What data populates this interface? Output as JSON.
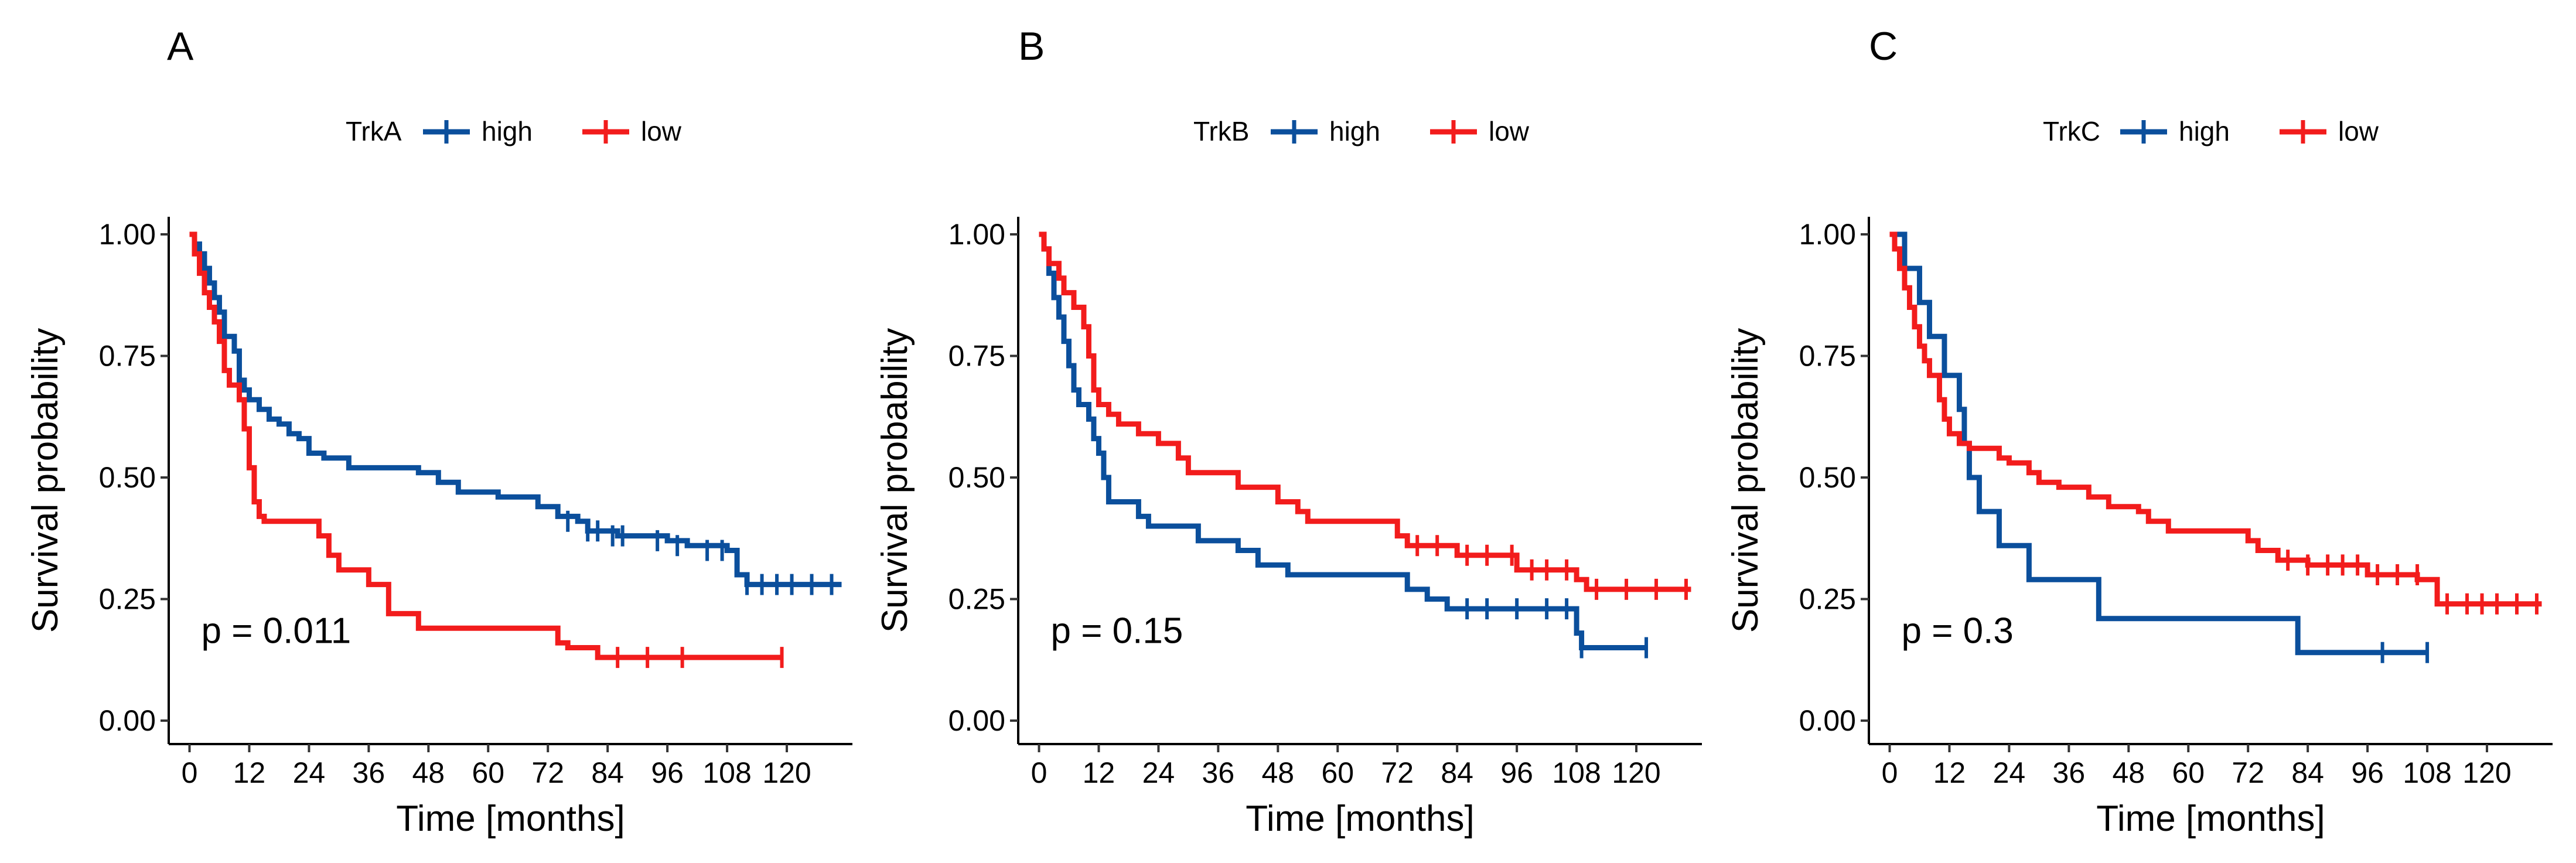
{
  "chart_data": [
    {
      "type": "line",
      "panel_label": "A",
      "legend_title": "TrkA",
      "xlabel": "Time [months]",
      "ylabel": "Survival probability",
      "xlim": [
        -3,
        132
      ],
      "ylim": [
        0,
        1.0
      ],
      "xticks": [
        0,
        12,
        24,
        36,
        48,
        60,
        72,
        84,
        96,
        108,
        120
      ],
      "xtick_labels": [
        "0",
        "12",
        "24",
        "36",
        "48",
        "60",
        "72",
        "84",
        "96",
        "108",
        "120"
      ],
      "yticks": [
        0,
        0.25,
        0.5,
        0.75,
        1.0
      ],
      "ytick_labels": [
        "0.00",
        "0.25",
        "0.50",
        "0.75",
        "1.00"
      ],
      "annotation": "p = 0.011",
      "series": [
        {
          "name": "high",
          "color": "#0b4f9c",
          "steps": [
            [
              0,
              1.0
            ],
            [
              1,
              0.98
            ],
            [
              2,
              0.96
            ],
            [
              3,
              0.93
            ],
            [
              4,
              0.9
            ],
            [
              5,
              0.87
            ],
            [
              6,
              0.84
            ],
            [
              7,
              0.79
            ],
            [
              9,
              0.76
            ],
            [
              10,
              0.7
            ],
            [
              11,
              0.68
            ],
            [
              12,
              0.66
            ],
            [
              14,
              0.64
            ],
            [
              16,
              0.62
            ],
            [
              18,
              0.61
            ],
            [
              20,
              0.59
            ],
            [
              22,
              0.58
            ],
            [
              24,
              0.55
            ],
            [
              27,
              0.54
            ],
            [
              32,
              0.52
            ],
            [
              40,
              0.52
            ],
            [
              46,
              0.51
            ],
            [
              50,
              0.49
            ],
            [
              54,
              0.47
            ],
            [
              62,
              0.46
            ],
            [
              70,
              0.44
            ],
            [
              74,
              0.42
            ],
            [
              78,
              0.41
            ],
            [
              80,
              0.39
            ],
            [
              86,
              0.38
            ],
            [
              96,
              0.37
            ],
            [
              100,
              0.36
            ],
            [
              108,
              0.35
            ],
            [
              110,
              0.3
            ],
            [
              112,
              0.28
            ],
            [
              131,
              0.28
            ]
          ],
          "censored": [
            [
              76,
              0.41
            ],
            [
              80,
              0.39
            ],
            [
              82,
              0.39
            ],
            [
              85,
              0.38
            ],
            [
              87,
              0.38
            ],
            [
              94,
              0.37
            ],
            [
              98,
              0.36
            ],
            [
              104,
              0.35
            ],
            [
              107,
              0.35
            ],
            [
              112,
              0.28
            ],
            [
              115,
              0.28
            ],
            [
              118,
              0.28
            ],
            [
              121,
              0.28
            ],
            [
              125,
              0.28
            ],
            [
              129,
              0.28
            ]
          ]
        },
        {
          "name": "low",
          "color": "#f21c1c",
          "steps": [
            [
              0,
              1.0
            ],
            [
              1,
              0.96
            ],
            [
              2,
              0.92
            ],
            [
              3,
              0.88
            ],
            [
              4,
              0.85
            ],
            [
              5,
              0.82
            ],
            [
              6,
              0.78
            ],
            [
              7,
              0.72
            ],
            [
              8,
              0.69
            ],
            [
              10,
              0.66
            ],
            [
              11,
              0.6
            ],
            [
              12,
              0.52
            ],
            [
              13,
              0.45
            ],
            [
              14,
              0.42
            ],
            [
              15,
              0.41
            ],
            [
              26,
              0.38
            ],
            [
              28,
              0.34
            ],
            [
              30,
              0.31
            ],
            [
              36,
              0.28
            ],
            [
              40,
              0.22
            ],
            [
              46,
              0.19
            ],
            [
              74,
              0.16
            ],
            [
              76,
              0.15
            ],
            [
              82,
              0.13
            ],
            [
              119,
              0.13
            ]
          ],
          "censored": [
            [
              86,
              0.13
            ],
            [
              92,
              0.13
            ],
            [
              99,
              0.13
            ],
            [
              119,
              0.13
            ]
          ]
        }
      ]
    },
    {
      "type": "line",
      "panel_label": "B",
      "legend_title": "TrkB",
      "xlabel": "Time [months]",
      "ylabel": "Survival probability",
      "xlim": [
        -3,
        132
      ],
      "ylim": [
        0,
        1.0
      ],
      "xticks": [
        0,
        12,
        24,
        36,
        48,
        60,
        72,
        84,
        96,
        108,
        120
      ],
      "xtick_labels": [
        "0",
        "12",
        "24",
        "36",
        "48",
        "60",
        "72",
        "84",
        "96",
        "108",
        "120"
      ],
      "yticks": [
        0,
        0.25,
        0.5,
        0.75,
        1.0
      ],
      "ytick_labels": [
        "0.00",
        "0.25",
        "0.50",
        "0.75",
        "1.00"
      ],
      "annotation": "p = 0.15",
      "series": [
        {
          "name": "high",
          "color": "#0b4f9c",
          "steps": [
            [
              0,
              1.0
            ],
            [
              1,
              0.97
            ],
            [
              2,
              0.92
            ],
            [
              3,
              0.87
            ],
            [
              4,
              0.83
            ],
            [
              5,
              0.78
            ],
            [
              6,
              0.73
            ],
            [
              7,
              0.68
            ],
            [
              8,
              0.65
            ],
            [
              10,
              0.62
            ],
            [
              11,
              0.58
            ],
            [
              12,
              0.55
            ],
            [
              13,
              0.5
            ],
            [
              14,
              0.45
            ],
            [
              20,
              0.42
            ],
            [
              22,
              0.4
            ],
            [
              32,
              0.37
            ],
            [
              40,
              0.35
            ],
            [
              44,
              0.32
            ],
            [
              50,
              0.3
            ],
            [
              74,
              0.27
            ],
            [
              78,
              0.25
            ],
            [
              82,
              0.23
            ],
            [
              108,
              0.18
            ],
            [
              109,
              0.15
            ],
            [
              122,
              0.15
            ]
          ],
          "censored": [
            [
              86,
              0.23
            ],
            [
              90,
              0.23
            ],
            [
              96,
              0.23
            ],
            [
              102,
              0.23
            ],
            [
              106,
              0.23
            ],
            [
              109,
              0.15
            ],
            [
              122,
              0.15
            ]
          ]
        },
        {
          "name": "low",
          "color": "#f21c1c",
          "steps": [
            [
              0,
              1.0
            ],
            [
              1,
              0.97
            ],
            [
              2,
              0.94
            ],
            [
              4,
              0.91
            ],
            [
              5,
              0.88
            ],
            [
              7,
              0.85
            ],
            [
              9,
              0.81
            ],
            [
              10,
              0.75
            ],
            [
              11,
              0.68
            ],
            [
              12,
              0.65
            ],
            [
              14,
              0.63
            ],
            [
              16,
              0.61
            ],
            [
              20,
              0.59
            ],
            [
              24,
              0.57
            ],
            [
              28,
              0.54
            ],
            [
              30,
              0.51
            ],
            [
              40,
              0.48
            ],
            [
              48,
              0.45
            ],
            [
              52,
              0.43
            ],
            [
              54,
              0.41
            ],
            [
              72,
              0.38
            ],
            [
              74,
              0.36
            ],
            [
              84,
              0.34
            ],
            [
              96,
              0.31
            ],
            [
              108,
              0.29
            ],
            [
              110,
              0.27
            ],
            [
              131,
              0.27
            ]
          ],
          "censored": [
            [
              76,
              0.36
            ],
            [
              80,
              0.36
            ],
            [
              86,
              0.34
            ],
            [
              90,
              0.34
            ],
            [
              95,
              0.34
            ],
            [
              99,
              0.31
            ],
            [
              102,
              0.31
            ],
            [
              106,
              0.31
            ],
            [
              112,
              0.27
            ],
            [
              118,
              0.27
            ],
            [
              124,
              0.27
            ],
            [
              130,
              0.27
            ]
          ]
        }
      ]
    },
    {
      "type": "line",
      "panel_label": "C",
      "legend_title": "TrkC",
      "xlabel": "Time [months]",
      "ylabel": "Survival probability",
      "xlim": [
        -3,
        132
      ],
      "ylim": [
        0,
        1.0
      ],
      "xticks": [
        0,
        12,
        24,
        36,
        48,
        60,
        72,
        84,
        96,
        108,
        120
      ],
      "xtick_labels": [
        "0",
        "12",
        "24",
        "36",
        "48",
        "60",
        "72",
        "84",
        "96",
        "108",
        "120"
      ],
      "yticks": [
        0,
        0.25,
        0.5,
        0.75,
        1.0
      ],
      "ytick_labels": [
        "0.00",
        "0.25",
        "0.50",
        "0.75",
        "1.00"
      ],
      "annotation": "p = 0.3",
      "series": [
        {
          "name": "high",
          "color": "#0b4f9c",
          "steps": [
            [
              0,
              1.0
            ],
            [
              3,
              0.93
            ],
            [
              6,
              0.86
            ],
            [
              8,
              0.79
            ],
            [
              11,
              0.71
            ],
            [
              14,
              0.64
            ],
            [
              15,
              0.57
            ],
            [
              16,
              0.5
            ],
            [
              18,
              0.43
            ],
            [
              22,
              0.36
            ],
            [
              28,
              0.29
            ],
            [
              42,
              0.21
            ],
            [
              82,
              0.14
            ],
            [
              108,
              0.14
            ]
          ],
          "censored": [
            [
              99,
              0.14
            ],
            [
              108,
              0.14
            ]
          ]
        },
        {
          "name": "low",
          "color": "#f21c1c",
          "steps": [
            [
              0,
              1.0
            ],
            [
              1,
              0.97
            ],
            [
              2,
              0.93
            ],
            [
              3,
              0.89
            ],
            [
              4,
              0.85
            ],
            [
              5,
              0.81
            ],
            [
              6,
              0.77
            ],
            [
              7,
              0.74
            ],
            [
              8,
              0.71
            ],
            [
              10,
              0.66
            ],
            [
              11,
              0.62
            ],
            [
              12,
              0.59
            ],
            [
              14,
              0.57
            ],
            [
              16,
              0.56
            ],
            [
              22,
              0.54
            ],
            [
              24,
              0.53
            ],
            [
              28,
              0.51
            ],
            [
              30,
              0.49
            ],
            [
              34,
              0.48
            ],
            [
              40,
              0.46
            ],
            [
              44,
              0.44
            ],
            [
              50,
              0.43
            ],
            [
              52,
              0.41
            ],
            [
              56,
              0.39
            ],
            [
              72,
              0.37
            ],
            [
              74,
              0.35
            ],
            [
              78,
              0.33
            ],
            [
              84,
              0.32
            ],
            [
              96,
              0.3
            ],
            [
              106,
              0.29
            ],
            [
              110,
              0.24
            ],
            [
              131,
              0.24
            ]
          ],
          "censored": [
            [
              80,
              0.33
            ],
            [
              84,
              0.32
            ],
            [
              88,
              0.32
            ],
            [
              91,
              0.32
            ],
            [
              94,
              0.32
            ],
            [
              98,
              0.3
            ],
            [
              102,
              0.3
            ],
            [
              106,
              0.3
            ],
            [
              112,
              0.24
            ],
            [
              116,
              0.24
            ],
            [
              119,
              0.24
            ],
            [
              122,
              0.24
            ],
            [
              126,
              0.24
            ],
            [
              130,
              0.24
            ]
          ]
        }
      ]
    }
  ]
}
